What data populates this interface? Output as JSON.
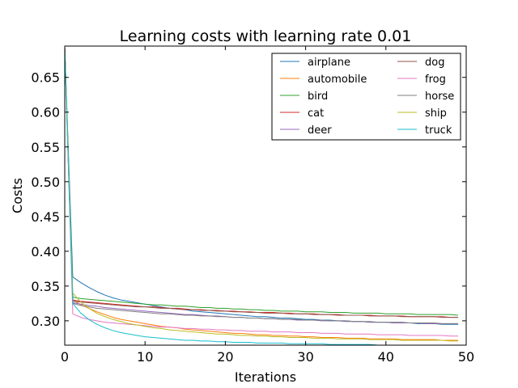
{
  "chart_data": {
    "type": "line",
    "title": "Learning costs with learning rate 0.01",
    "xlabel": "Iterations",
    "ylabel": "Costs",
    "xlim": [
      0,
      50
    ],
    "ylim": [
      0.265,
      0.695
    ],
    "xticks": [
      0,
      10,
      20,
      30,
      40,
      50
    ],
    "yticks": [
      0.3,
      0.35,
      0.4,
      0.45,
      0.5,
      0.55,
      0.6,
      0.65
    ],
    "grid": false,
    "legend_position": "top-right",
    "series": [
      {
        "name": "airplane",
        "color": "#1f77b4",
        "values": [
          0.693,
          0.363,
          0.355,
          0.348,
          0.342,
          0.337,
          0.333,
          0.33,
          0.328,
          0.326,
          0.324,
          0.322,
          0.32,
          0.318,
          0.317,
          0.316,
          0.314,
          0.313,
          0.312,
          0.311,
          0.31,
          0.309,
          0.308,
          0.307,
          0.306,
          0.306,
          0.305,
          0.304,
          0.304,
          0.303,
          0.302,
          0.302,
          0.301,
          0.301,
          0.3,
          0.3,
          0.299,
          0.299,
          0.298,
          0.298,
          0.298,
          0.297,
          0.297,
          0.297,
          0.296,
          0.296,
          0.296,
          0.295,
          0.295,
          0.295
        ]
      },
      {
        "name": "automobile",
        "color": "#ff7f0e",
        "values": [
          0.693,
          0.33,
          0.323,
          0.318,
          0.313,
          0.309,
          0.305,
          0.302,
          0.3,
          0.298,
          0.296,
          0.294,
          0.292,
          0.291,
          0.29,
          0.288,
          0.287,
          0.286,
          0.285,
          0.284,
          0.283,
          0.282,
          0.282,
          0.281,
          0.28,
          0.28,
          0.279,
          0.279,
          0.278,
          0.278,
          0.277,
          0.277,
          0.276,
          0.276,
          0.276,
          0.275,
          0.275,
          0.275,
          0.274,
          0.274,
          0.274,
          0.274,
          0.273,
          0.273,
          0.273,
          0.273,
          0.273,
          0.272,
          0.272,
          0.272
        ]
      },
      {
        "name": "bird",
        "color": "#2ca02c",
        "values": [
          0.693,
          0.334,
          0.332,
          0.331,
          0.33,
          0.329,
          0.328,
          0.327,
          0.326,
          0.325,
          0.324,
          0.323,
          0.323,
          0.322,
          0.321,
          0.321,
          0.32,
          0.319,
          0.319,
          0.318,
          0.318,
          0.317,
          0.317,
          0.316,
          0.316,
          0.315,
          0.315,
          0.314,
          0.314,
          0.314,
          0.313,
          0.313,
          0.313,
          0.312,
          0.312,
          0.312,
          0.311,
          0.311,
          0.311,
          0.311,
          0.31,
          0.31,
          0.31,
          0.31,
          0.309,
          0.309,
          0.309,
          0.309,
          0.309,
          0.308
        ]
      },
      {
        "name": "cat",
        "color": "#d62728",
        "values": [
          0.693,
          0.33,
          0.328,
          0.327,
          0.326,
          0.325,
          0.324,
          0.323,
          0.322,
          0.321,
          0.32,
          0.32,
          0.319,
          0.318,
          0.318,
          0.317,
          0.316,
          0.316,
          0.315,
          0.315,
          0.314,
          0.314,
          0.313,
          0.313,
          0.312,
          0.312,
          0.312,
          0.311,
          0.311,
          0.31,
          0.31,
          0.31,
          0.309,
          0.309,
          0.309,
          0.308,
          0.308,
          0.308,
          0.308,
          0.307,
          0.307,
          0.307,
          0.307,
          0.306,
          0.306,
          0.306,
          0.306,
          0.306,
          0.305,
          0.305
        ]
      },
      {
        "name": "deer",
        "color": "#9467bd",
        "values": [
          0.693,
          0.326,
          0.324,
          0.322,
          0.321,
          0.319,
          0.318,
          0.317,
          0.316,
          0.315,
          0.314,
          0.313,
          0.312,
          0.311,
          0.31,
          0.309,
          0.309,
          0.308,
          0.307,
          0.307,
          0.306,
          0.305,
          0.305,
          0.304,
          0.304,
          0.303,
          0.303,
          0.302,
          0.302,
          0.301,
          0.301,
          0.301,
          0.3,
          0.3,
          0.3,
          0.299,
          0.299,
          0.299,
          0.298,
          0.298,
          0.298,
          0.297,
          0.297,
          0.297,
          0.297,
          0.296,
          0.296,
          0.296,
          0.296,
          0.296
        ]
      },
      {
        "name": "dog",
        "color": "#8c564b",
        "values": [
          0.693,
          0.328,
          0.327,
          0.326,
          0.325,
          0.324,
          0.323,
          0.322,
          0.321,
          0.32,
          0.32,
          0.319,
          0.318,
          0.318,
          0.317,
          0.316,
          0.316,
          0.315,
          0.315,
          0.314,
          0.314,
          0.313,
          0.313,
          0.312,
          0.312,
          0.311,
          0.311,
          0.311,
          0.31,
          0.31,
          0.31,
          0.309,
          0.309,
          0.309,
          0.308,
          0.308,
          0.308,
          0.308,
          0.307,
          0.307,
          0.307,
          0.307,
          0.306,
          0.306,
          0.306,
          0.306,
          0.306,
          0.305,
          0.305,
          0.305
        ]
      },
      {
        "name": "frog",
        "color": "#e377c2",
        "values": [
          0.693,
          0.31,
          0.305,
          0.302,
          0.3,
          0.298,
          0.297,
          0.296,
          0.295,
          0.294,
          0.293,
          0.292,
          0.291,
          0.291,
          0.29,
          0.289,
          0.289,
          0.288,
          0.288,
          0.287,
          0.287,
          0.286,
          0.286,
          0.285,
          0.285,
          0.285,
          0.284,
          0.284,
          0.284,
          0.283,
          0.283,
          0.283,
          0.282,
          0.282,
          0.282,
          0.281,
          0.281,
          0.281,
          0.281,
          0.28,
          0.28,
          0.28,
          0.28,
          0.279,
          0.279,
          0.279,
          0.279,
          0.279,
          0.278,
          0.278
        ]
      },
      {
        "name": "horse",
        "color": "#7f7f7f",
        "values": [
          0.693,
          0.325,
          0.322,
          0.32,
          0.318,
          0.317,
          0.316,
          0.315,
          0.314,
          0.313,
          0.312,
          0.311,
          0.31,
          0.31,
          0.309,
          0.308,
          0.308,
          0.307,
          0.307,
          0.306,
          0.306,
          0.305,
          0.305,
          0.304,
          0.304,
          0.303,
          0.303,
          0.302,
          0.302,
          0.302,
          0.301,
          0.301,
          0.301,
          0.3,
          0.3,
          0.3,
          0.299,
          0.299,
          0.299,
          0.298,
          0.298,
          0.298,
          0.298,
          0.297,
          0.297,
          0.297,
          0.297,
          0.296,
          0.296,
          0.296
        ]
      },
      {
        "name": "ship",
        "color": "#bcbd22",
        "values": [
          0.693,
          0.34,
          0.327,
          0.318,
          0.311,
          0.306,
          0.302,
          0.299,
          0.296,
          0.294,
          0.292,
          0.29,
          0.289,
          0.287,
          0.286,
          0.285,
          0.284,
          0.283,
          0.282,
          0.281,
          0.281,
          0.28,
          0.279,
          0.279,
          0.278,
          0.278,
          0.277,
          0.277,
          0.276,
          0.276,
          0.276,
          0.275,
          0.275,
          0.275,
          0.274,
          0.274,
          0.274,
          0.274,
          0.273,
          0.273,
          0.273,
          0.273,
          0.272,
          0.272,
          0.272,
          0.272,
          0.272,
          0.272,
          0.271,
          0.271
        ]
      },
      {
        "name": "truck",
        "color": "#17becf",
        "values": [
          0.693,
          0.325,
          0.311,
          0.302,
          0.295,
          0.29,
          0.286,
          0.283,
          0.281,
          0.279,
          0.277,
          0.276,
          0.275,
          0.274,
          0.273,
          0.272,
          0.272,
          0.271,
          0.271,
          0.27,
          0.27,
          0.269,
          0.269,
          0.269,
          0.268,
          0.268,
          0.268,
          0.268,
          0.267,
          0.267,
          0.267,
          0.267,
          0.267,
          0.266,
          0.266,
          0.266,
          0.266,
          0.266,
          0.266,
          0.265,
          0.265,
          0.265,
          0.265,
          0.265,
          0.265,
          0.265,
          0.265,
          0.264,
          0.264,
          0.264
        ]
      }
    ]
  }
}
